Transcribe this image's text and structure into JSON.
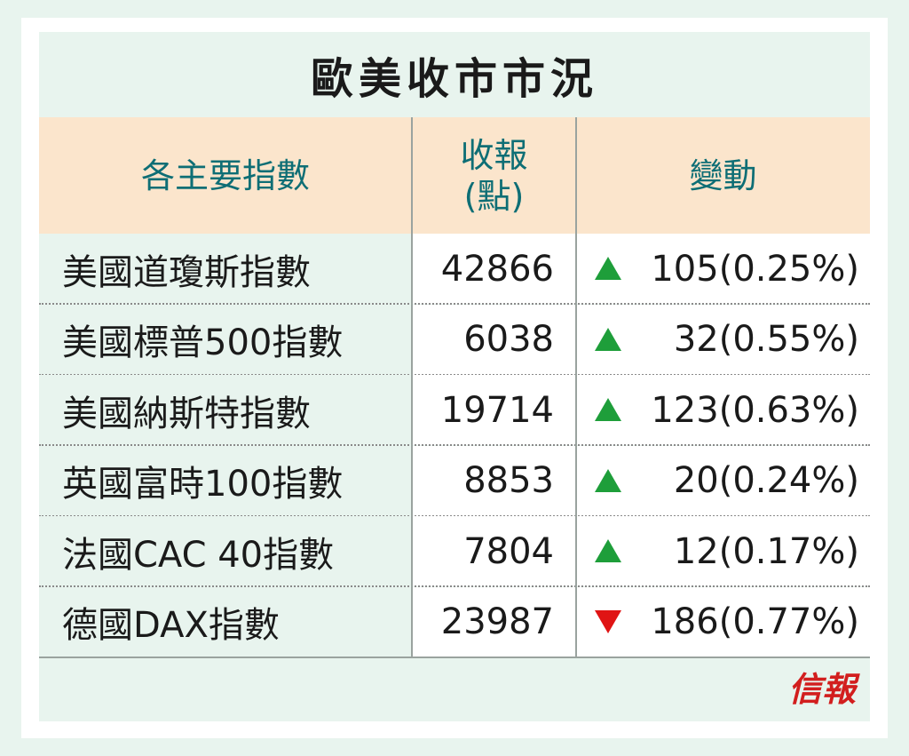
{
  "title": "歐美收市市況",
  "headers": {
    "index": "各主要指數",
    "close_line1": "收報",
    "close_line2": "(點)",
    "change": "變動"
  },
  "rows": [
    {
      "name": "美國道瓊斯指數",
      "close": "42866",
      "direction": "up",
      "change": "105(0.25%)"
    },
    {
      "name": "美國標普500指數",
      "close": "6038",
      "direction": "up",
      "change": "32(0.55%)"
    },
    {
      "name": "美國納斯特指數",
      "close": "19714",
      "direction": "up",
      "change": "123(0.63%)"
    },
    {
      "name": "英國富時100指數",
      "close": "8853",
      "direction": "up",
      "change": "20(0.24%)"
    },
    {
      "name": "法國CAC 40指數",
      "close": "7804",
      "direction": "up",
      "change": "12(0.17%)"
    },
    {
      "name": "德國DAX指數",
      "close": "23987",
      "direction": "down",
      "change": "186(0.77%)"
    }
  ],
  "logo": "信報",
  "colors": {
    "up": "#1e9e3a",
    "down": "#e01414",
    "header_bg": "#fbe5cc",
    "header_text": "#0e6e75",
    "logo": "#d21e1e"
  },
  "icons": {
    "up": "triangle-up-icon",
    "down": "triangle-down-icon"
  }
}
